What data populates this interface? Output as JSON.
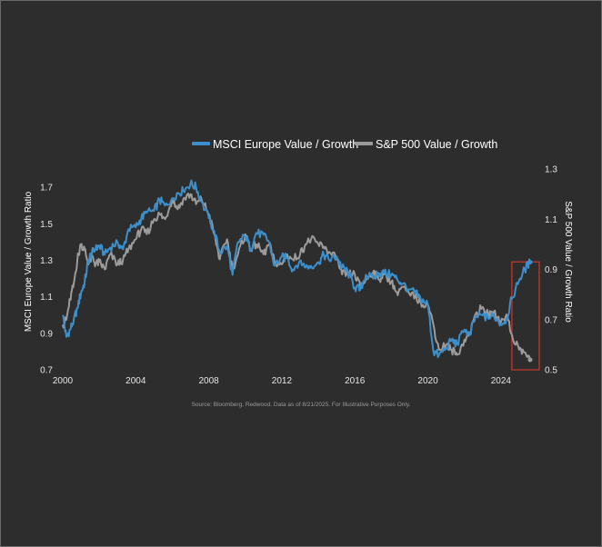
{
  "chart_data": {
    "type": "line",
    "title": "",
    "legend": {
      "placement": "top-center",
      "items": [
        "MSCI Europe Value / Growth",
        "S&P 500 Value / Growth"
      ]
    },
    "colors": {
      "background": "#2d2d2d",
      "msci": "#3d8fcb",
      "sp500": "#9b9b9b",
      "highlight": "#c0392b"
    },
    "ylabel_left": "MSCI Europe Value / Growth Ratio",
    "ylabel_right": "S&P 500 Value / Growth Ratio",
    "xlim": [
      2000,
      2026
    ],
    "ylim_left": [
      0.7,
      1.8
    ],
    "ylim_right": [
      0.5,
      1.3
    ],
    "x_ticks": [
      "2000",
      "2004",
      "2008",
      "2012",
      "2016",
      "2020",
      "2024"
    ],
    "y_ticks_left": [
      "1.7",
      "1.5",
      "1.3",
      "1.1",
      "0.9",
      "0.7"
    ],
    "y_ticks_right": [
      "1.3",
      "1.1",
      "0.9",
      "0.7",
      "0.5"
    ],
    "highlight_region": {
      "x0": 2024.6,
      "x1": 2026.1,
      "y0_right": 0.5,
      "y1_right": 0.93
    },
    "series": [
      {
        "name": "MSCI Europe Value / Growth",
        "axis": "left",
        "x": [
          2000.0,
          2000.2,
          2000.4,
          2000.6,
          2000.8,
          2001.0,
          2001.2,
          2001.4,
          2001.6,
          2001.8,
          2002.0,
          2002.3,
          2002.6,
          2003.0,
          2003.3,
          2003.6,
          2004.0,
          2004.3,
          2004.6,
          2005.0,
          2005.3,
          2005.6,
          2006.0,
          2006.3,
          2006.6,
          2007.0,
          2007.3,
          2007.6,
          2008.0,
          2008.3,
          2008.6,
          2009.0,
          2009.3,
          2009.6,
          2010.0,
          2010.3,
          2010.6,
          2011.0,
          2011.3,
          2011.6,
          2012.0,
          2012.3,
          2012.6,
          2013.0,
          2013.3,
          2013.6,
          2014.0,
          2014.3,
          2014.6,
          2015.0,
          2015.3,
          2015.6,
          2016.0,
          2016.3,
          2016.6,
          2017.0,
          2017.3,
          2017.6,
          2018.0,
          2018.3,
          2018.6,
          2019.0,
          2019.3,
          2019.6,
          2020.0,
          2020.3,
          2020.6,
          2021.0,
          2021.3,
          2021.6,
          2022.0,
          2022.3,
          2022.6,
          2023.0,
          2023.3,
          2023.6,
          2024.0,
          2024.3,
          2024.6,
          2025.0,
          2025.3,
          2025.6
        ],
        "values": [
          1.0,
          0.88,
          0.92,
          0.97,
          1.04,
          1.12,
          1.18,
          1.3,
          1.34,
          1.36,
          1.38,
          1.33,
          1.37,
          1.4,
          1.36,
          1.47,
          1.48,
          1.53,
          1.56,
          1.57,
          1.63,
          1.6,
          1.64,
          1.67,
          1.68,
          1.72,
          1.7,
          1.62,
          1.53,
          1.46,
          1.34,
          1.38,
          1.22,
          1.4,
          1.43,
          1.36,
          1.45,
          1.44,
          1.4,
          1.27,
          1.32,
          1.31,
          1.25,
          1.3,
          1.26,
          1.27,
          1.29,
          1.33,
          1.3,
          1.32,
          1.26,
          1.24,
          1.15,
          1.14,
          1.22,
          1.2,
          1.23,
          1.23,
          1.22,
          1.2,
          1.17,
          1.14,
          1.12,
          1.09,
          1.06,
          0.8,
          0.78,
          0.82,
          0.86,
          0.84,
          0.92,
          0.89,
          0.99,
          1.0,
          0.98,
          1.0,
          0.95,
          0.98,
          1.09,
          1.19,
          1.25,
          1.29
        ]
      },
      {
        "name": "S&P 500 Value / Growth",
        "axis": "right",
        "x": [
          2000.0,
          2000.2,
          2000.4,
          2000.6,
          2000.8,
          2001.0,
          2001.2,
          2001.4,
          2001.6,
          2001.8,
          2002.0,
          2002.3,
          2002.6,
          2003.0,
          2003.3,
          2003.6,
          2004.0,
          2004.3,
          2004.6,
          2005.0,
          2005.3,
          2005.6,
          2006.0,
          2006.3,
          2006.6,
          2007.0,
          2007.3,
          2007.6,
          2008.0,
          2008.3,
          2008.6,
          2009.0,
          2009.3,
          2009.6,
          2010.0,
          2010.3,
          2010.6,
          2011.0,
          2011.3,
          2011.6,
          2012.0,
          2012.3,
          2012.6,
          2013.0,
          2013.3,
          2013.6,
          2014.0,
          2014.3,
          2014.6,
          2015.0,
          2015.3,
          2015.6,
          2016.0,
          2016.3,
          2016.6,
          2017.0,
          2017.3,
          2017.6,
          2018.0,
          2018.3,
          2018.6,
          2019.0,
          2019.3,
          2019.6,
          2020.0,
          2020.3,
          2020.6,
          2021.0,
          2021.3,
          2021.6,
          2022.0,
          2022.3,
          2022.6,
          2023.0,
          2023.3,
          2023.6,
          2024.0,
          2024.3,
          2024.6,
          2025.0,
          2025.3,
          2025.6
        ],
        "values": [
          0.68,
          0.7,
          0.78,
          0.84,
          0.94,
          1.0,
          0.98,
          0.92,
          0.95,
          0.92,
          0.93,
          0.9,
          0.96,
          0.92,
          0.94,
          0.98,
          1.02,
          1.06,
          1.04,
          1.1,
          1.12,
          1.1,
          1.18,
          1.14,
          1.18,
          1.2,
          1.16,
          1.18,
          1.12,
          1.04,
          0.94,
          1.02,
          0.9,
          0.96,
          1.04,
          0.98,
          1.0,
          0.96,
          1.0,
          0.93,
          0.92,
          0.96,
          0.94,
          0.96,
          1.0,
          1.02,
          1.0,
          0.99,
          0.97,
          0.94,
          0.88,
          0.88,
          0.88,
          0.83,
          0.86,
          0.89,
          0.86,
          0.88,
          0.85,
          0.81,
          0.83,
          0.8,
          0.79,
          0.77,
          0.76,
          0.68,
          0.58,
          0.6,
          0.58,
          0.56,
          0.62,
          0.64,
          0.72,
          0.75,
          0.72,
          0.73,
          0.69,
          0.72,
          0.64,
          0.58,
          0.57,
          0.54
        ]
      }
    ]
  },
  "source_note": "Source: Bloomberg, Redwood. Data as of 8/21/2025. For Illustrative Purposes Only."
}
